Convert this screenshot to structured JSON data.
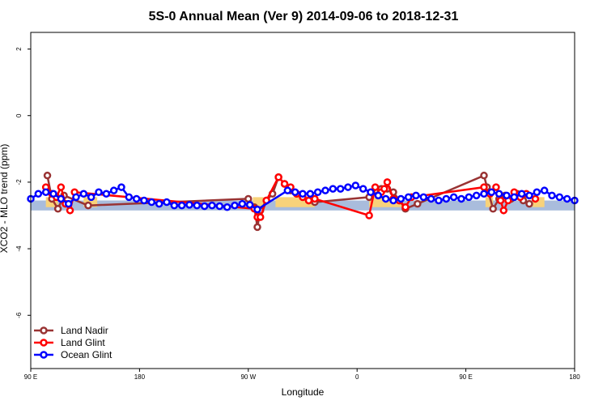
{
  "chart_data": {
    "type": "line",
    "title": "5S-0 Annual Mean (Ver 9)   2014-09-06 to 2018-12-31",
    "xlabel": "Longitude",
    "ylabel": "XCO2 - MLO trend (ppm)",
    "xlim": [
      -90,
      270
    ],
    "ylim": [
      -7.6,
      2.5
    ],
    "xticks": [
      {
        "value": -90,
        "label": "90 E"
      },
      {
        "value": -18,
        "label": "180"
      },
      {
        "value": 54,
        "label": "90 W"
      },
      {
        "value": 126,
        "label": "0"
      },
      {
        "value": 198,
        "label": "90 E"
      },
      {
        "value": 270,
        "label": "180"
      }
    ],
    "yticks": [
      -6,
      -4,
      -2,
      0,
      2
    ],
    "grid": false,
    "legend_position": "bottom-left",
    "bands": [
      {
        "kind": "blue",
        "color": "#a9bcdc",
        "x": [
          -90,
          270
        ],
        "y": [
          -2.85,
          -2.55
        ]
      },
      {
        "kind": "yellow",
        "color": "#f8d27a",
        "x": [
          -80,
          -72
        ],
        "y": [
          -2.75,
          -2.45
        ]
      },
      {
        "kind": "yellow",
        "color": "#f8d27a",
        "x": [
          -55,
          -46
        ],
        "y": [
          -2.75,
          -2.45
        ]
      },
      {
        "kind": "yellow",
        "color": "#f8d27a",
        "x": [
          57,
          64
        ],
        "y": [
          -2.75,
          -2.45
        ]
      },
      {
        "kind": "yellow",
        "color": "#f8d27a",
        "x": [
          72,
          98
        ],
        "y": [
          -2.75,
          -2.45
        ]
      },
      {
        "kind": "yellow",
        "color": "#f8d27a",
        "x": [
          134,
          156
        ],
        "y": [
          -2.75,
          -2.45
        ]
      },
      {
        "kind": "yellow",
        "color": "#f8d27a",
        "x": [
          211,
          216
        ],
        "y": [
          -2.75,
          -2.45
        ]
      },
      {
        "kind": "yellow",
        "color": "#f8d27a",
        "x": [
          242,
          250
        ],
        "y": [
          -2.75,
          -2.45
        ]
      }
    ],
    "series": [
      {
        "name": "Land Nadir",
        "color": "#993333",
        "x": [
          -79,
          -76,
          -72,
          -68,
          -52,
          54,
          58,
          60,
          62,
          66,
          70,
          74,
          78,
          82,
          86,
          90,
          94,
          98,
          134,
          138,
          142,
          146,
          150,
          154,
          158,
          166,
          210,
          212,
          216,
          220,
          224,
          228,
          232,
          236,
          240
        ],
        "y": [
          -1.8,
          -2.5,
          -2.8,
          -2.4,
          -2.7,
          -2.5,
          -2.75,
          -3.35,
          -2.85,
          -2.55,
          -2.35,
          -1.85,
          -2.05,
          -2.25,
          -2.35,
          -2.45,
          -2.55,
          -2.6,
          -2.45,
          -2.25,
          -2.2,
          -2.2,
          -2.3,
          -2.55,
          -2.8,
          -2.65,
          -1.8,
          -2.15,
          -2.8,
          -2.5,
          -2.4,
          -2.5,
          -2.35,
          -2.55,
          -2.65
        ]
      },
      {
        "name": "Land Glint",
        "color": "#ff0000",
        "x": [
          -80,
          -76,
          -73,
          -70,
          -67,
          -64,
          -61,
          58,
          60,
          62,
          66,
          74,
          78,
          82,
          86,
          90,
          94,
          98,
          134,
          138,
          142,
          144,
          146,
          150,
          154,
          158,
          162,
          210,
          214,
          218,
          221,
          223,
          226,
          230,
          234,
          238,
          244
        ],
        "y": [
          -2.15,
          -2.35,
          -2.45,
          -2.15,
          -2.65,
          -2.85,
          -2.3,
          -2.8,
          -3.05,
          -3.05,
          -2.55,
          -1.85,
          -2.05,
          -2.15,
          -2.35,
          -2.45,
          -2.55,
          -2.5,
          -3.0,
          -2.15,
          -2.3,
          -2.2,
          -2.0,
          -2.5,
          -2.55,
          -2.75,
          -2.45,
          -2.15,
          -2.35,
          -2.15,
          -2.55,
          -2.85,
          -2.55,
          -2.3,
          -2.45,
          -2.35,
          -2.5
        ]
      },
      {
        "name": "Ocean Glint",
        "color": "#0000ff",
        "x": [
          -90,
          -85,
          -80,
          -75,
          -70,
          -65,
          -60,
          -55,
          -50,
          -45,
          -40,
          -35,
          -30,
          -25,
          -20,
          -15,
          -10,
          -5,
          0,
          5,
          10,
          15,
          20,
          25,
          30,
          35,
          40,
          45,
          50,
          55,
          60,
          80,
          85,
          90,
          95,
          100,
          105,
          110,
          115,
          120,
          125,
          130,
          135,
          140,
          145,
          150,
          155,
          160,
          165,
          170,
          175,
          180,
          185,
          190,
          195,
          200,
          205,
          210,
          215,
          220,
          225,
          230,
          235,
          240,
          245,
          250,
          255,
          260,
          265,
          270
        ],
        "y": [
          -2.5,
          -2.35,
          -2.3,
          -2.35,
          -2.5,
          -2.65,
          -2.45,
          -2.35,
          -2.45,
          -2.3,
          -2.35,
          -2.25,
          -2.15,
          -2.45,
          -2.5,
          -2.55,
          -2.6,
          -2.65,
          -2.6,
          -2.7,
          -2.7,
          -2.68,
          -2.7,
          -2.72,
          -2.7,
          -2.72,
          -2.75,
          -2.7,
          -2.65,
          -2.68,
          -2.82,
          -2.25,
          -2.3,
          -2.35,
          -2.35,
          -2.3,
          -2.25,
          -2.2,
          -2.2,
          -2.15,
          -2.1,
          -2.2,
          -2.3,
          -2.4,
          -2.5,
          -2.55,
          -2.5,
          -2.45,
          -2.4,
          -2.45,
          -2.5,
          -2.55,
          -2.5,
          -2.45,
          -2.5,
          -2.45,
          -2.4,
          -2.35,
          -2.3,
          -2.35,
          -2.4,
          -2.45,
          -2.35,
          -2.4,
          -2.3,
          -2.25,
          -2.4,
          -2.45,
          -2.5,
          -2.55
        ]
      }
    ]
  }
}
